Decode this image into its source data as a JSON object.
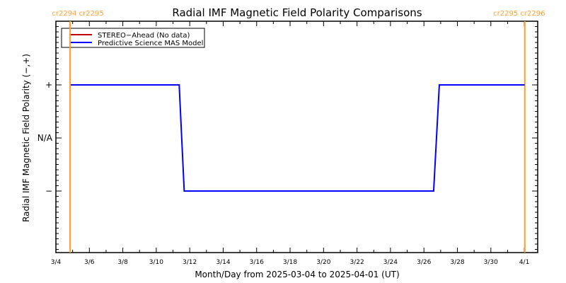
{
  "chart_data": {
    "type": "line",
    "title": "Radial IMF Magnetic Field Polarity Comparisons",
    "xlabel": "Month/Day from 2025-03-04 to 2025-04-01 (UT)",
    "ylabel": "Radial IMF Magnetic Field Polarity (−,+)",
    "x_start_date": "2025-03-04",
    "xlim_days": [
      0,
      28.8
    ],
    "ylim": [
      -2.16,
      2.2
    ],
    "x_ticks": [
      "3/4",
      "3/6",
      "3/8",
      "3/10",
      "3/12",
      "3/14",
      "3/16",
      "3/18",
      "3/20",
      "3/22",
      "3/24",
      "3/26",
      "3/28",
      "3/30",
      "4/1"
    ],
    "y_ticks": [
      {
        "value": 1,
        "label": "+"
      },
      {
        "value": 0,
        "label": "N/A"
      },
      {
        "value": -1,
        "label": "−"
      }
    ],
    "legend": {
      "placement": "top-left"
    },
    "series": [
      {
        "name": "STEREO−Ahead (No data)",
        "color": "#c00000",
        "points": []
      },
      {
        "name": "Predictive Science MAS Model",
        "color": "#0000ff",
        "points": [
          [
            "2025-03-04.85",
            1
          ],
          [
            "2025-03-11.37",
            1
          ],
          [
            "2025-03-11.67",
            -1
          ],
          [
            "2025-03-26.58",
            -1
          ],
          [
            "2025-03-26.92",
            1
          ],
          [
            "2025-04-01.02",
            1
          ]
        ]
      }
    ],
    "carrington_markers": [
      {
        "date": "2025-03-04.85",
        "label": "cr2294 cr2295"
      },
      {
        "date": "2025-04-01.03",
        "label": "cr2295 cr2296"
      }
    ],
    "marker_color": "#ffa030"
  }
}
